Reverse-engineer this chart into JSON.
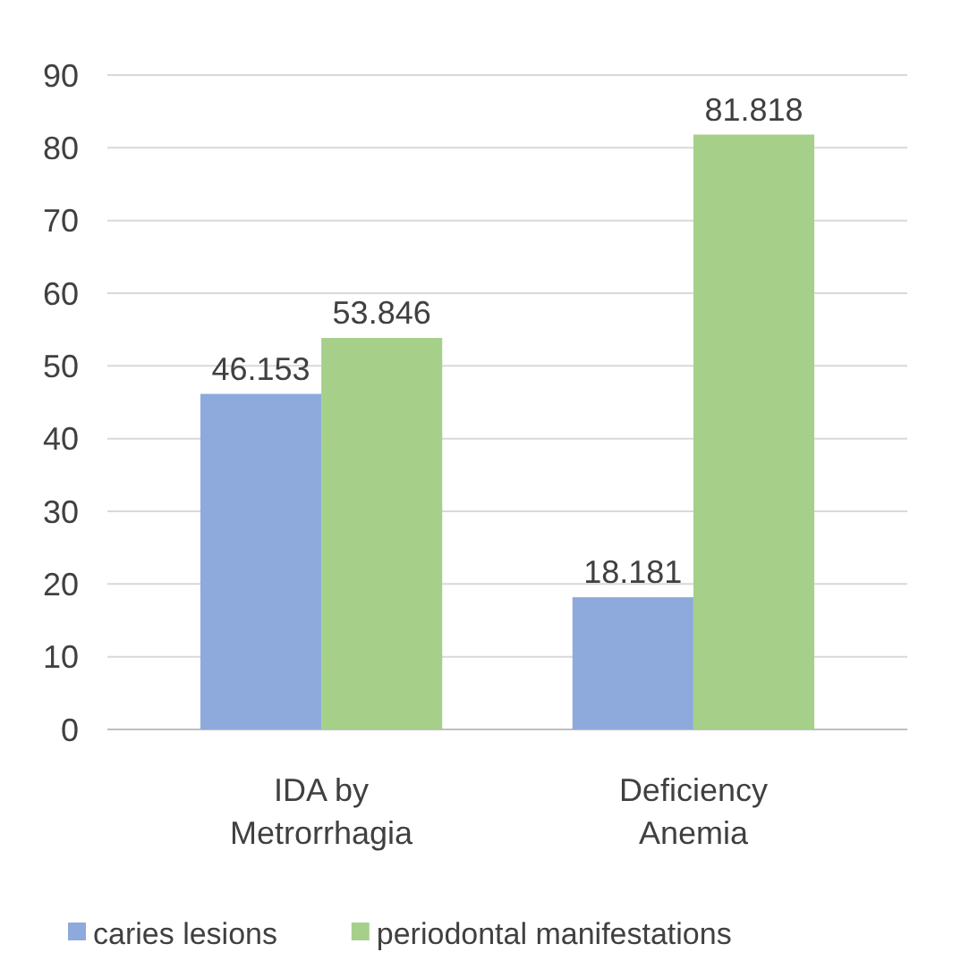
{
  "chart_data": {
    "type": "bar",
    "categories": [
      "IDA by Metrorrhagia",
      "Deficiency Anemia"
    ],
    "series": [
      {
        "name": "caries lesions",
        "color": "#8eaadc",
        "values": [
          46.153,
          18.181
        ]
      },
      {
        "name": "periodontal manifestations",
        "color": "#a6d08a",
        "values": [
          53.846,
          81.818
        ]
      }
    ],
    "ylim": [
      0,
      90
    ],
    "yticks": [
      0,
      10,
      20,
      30,
      40,
      50,
      60,
      70,
      80,
      90
    ],
    "grid": "y",
    "legend": "bottom",
    "data_labels": true
  }
}
